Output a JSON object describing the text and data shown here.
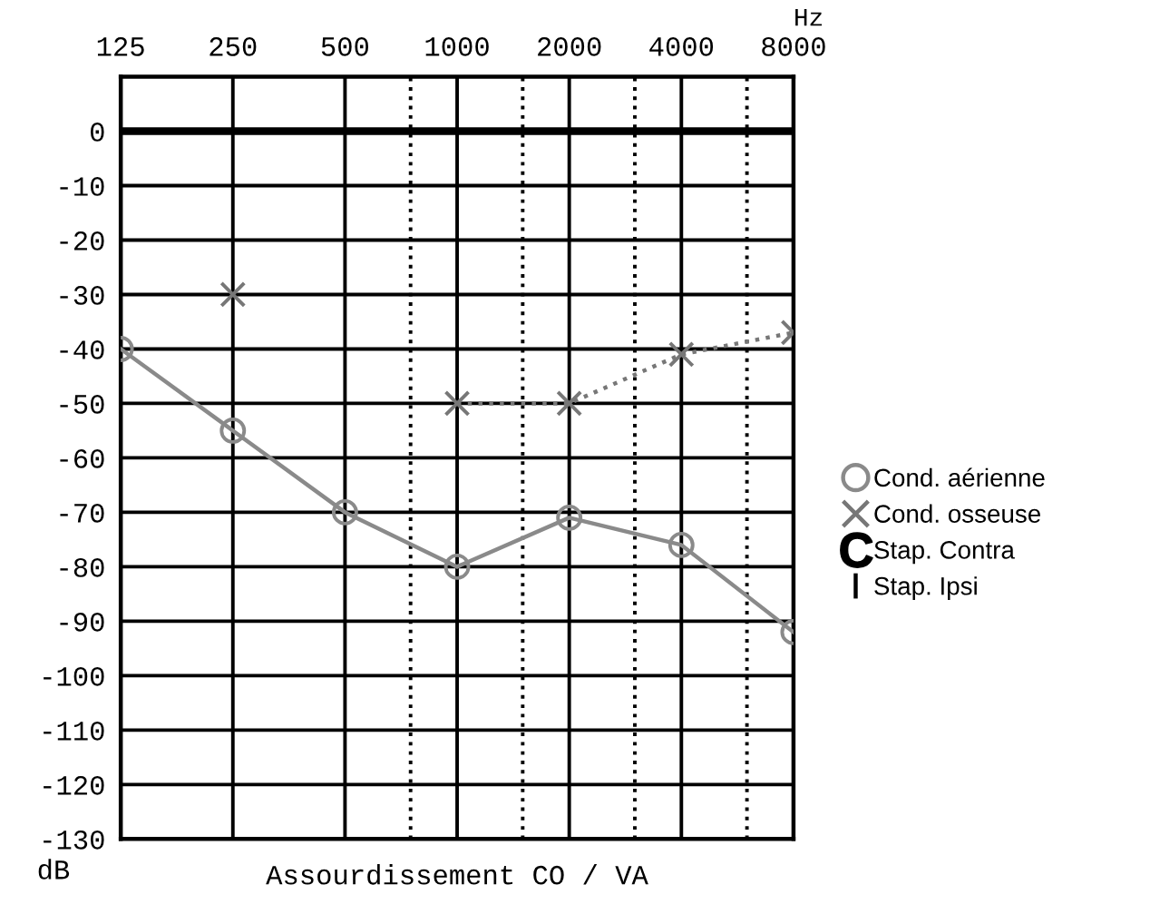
{
  "chart_data": {
    "type": "line",
    "xlabel": "Assourdissement CO / VA",
    "ylabel": "dB",
    "annotations": [
      "Hz"
    ],
    "x": [
      125,
      250,
      500,
      1000,
      2000,
      4000,
      8000
    ],
    "log": "x",
    "xlim": [
      125,
      8000
    ],
    "xticks": [
      125,
      250,
      500,
      1000,
      2000,
      4000,
      8000
    ],
    "ylim": [
      -130,
      10
    ],
    "yticks": [
      -130,
      -120,
      -110,
      -100,
      -90,
      -80,
      -70,
      -60,
      -50,
      -40,
      -30,
      -20,
      -10,
      0
    ],
    "grid": true,
    "legend": "right",
    "series": [
      {
        "name": "Cond. aérienne",
        "color": "#8a8a8a",
        "marker": "circle",
        "line_style": "solid",
        "values": [
          -40,
          -55,
          -70,
          -80,
          -71,
          -76,
          -92
        ]
      },
      {
        "name": "Cond. osseuse",
        "color": "#777777",
        "marker": "cross",
        "line_style": "dotted",
        "values": [
          null,
          -30,
          null,
          -50,
          -50,
          -41,
          -37
        ]
      },
      {
        "name": "Stap. Contra",
        "color": "#000000",
        "marker": "C",
        "line_style": "none",
        "values": [
          null,
          null,
          null,
          null,
          null,
          null,
          null
        ]
      },
      {
        "name": "Stap. Ipsi",
        "color": "#000000",
        "marker": "vline",
        "line_style": "none",
        "values": [
          null,
          null,
          null,
          null,
          null,
          null,
          null
        ]
      }
    ],
    "ref_lines": [
      {
        "axis": "y",
        "value": 0,
        "color": "#000000",
        "line_style": "solid"
      },
      {
        "axis": "x",
        "value": 750,
        "color": "#000000",
        "line_style": "dotted"
      },
      {
        "axis": "x",
        "value": 1500,
        "color": "#000000",
        "line_style": "dotted"
      },
      {
        "axis": "x",
        "value": 3000,
        "color": "#000000",
        "line_style": "dotted"
      },
      {
        "axis": "x",
        "value": 6000,
        "color": "#000000",
        "line_style": "dotted"
      }
    ]
  }
}
